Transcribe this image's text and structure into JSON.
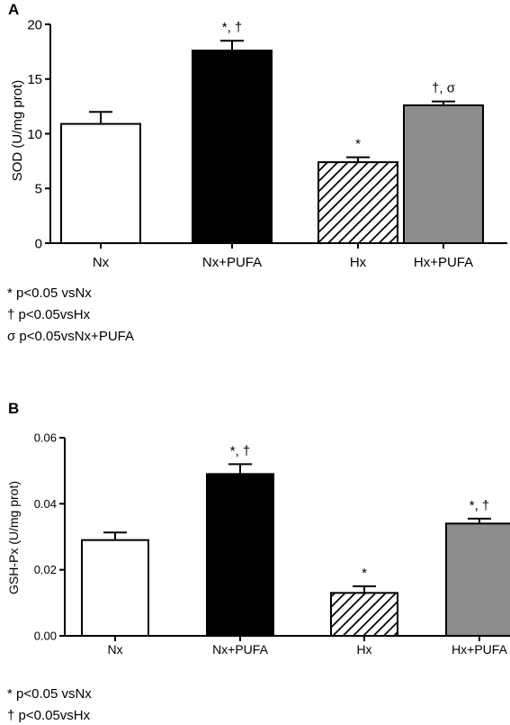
{
  "chart_data": [
    {
      "type": "bar",
      "panel": "A",
      "ylabel": "SOD (U/mg prot)",
      "categories": [
        "Nx",
        "Nx+PUFA",
        "Hx",
        "Hx+PUFA"
      ],
      "values": [
        10.9,
        17.6,
        7.4,
        12.6
      ],
      "errors": [
        1.1,
        0.9,
        0.45,
        0.35
      ],
      "annotations": [
        "",
        "*, †",
        "*",
        "†, σ"
      ],
      "bar_styles": [
        "white",
        "black",
        "hatched",
        "gray"
      ],
      "ylim": [
        0,
        20
      ],
      "yticks": [
        "0",
        "5",
        "10",
        "15",
        "20"
      ],
      "footnotes": [
        "* p<0.05 vsNx",
        "† p<0.05vsHx",
        "σ p<0.05vsNx+PUFA"
      ]
    },
    {
      "type": "bar",
      "panel": "B",
      "ylabel": "GSH-Px (U/mg prot)",
      "categories": [
        "Nx",
        "Nx+PUFA",
        "Hx",
        "Hx+PUFA"
      ],
      "values": [
        0.029,
        0.049,
        0.013,
        0.034
      ],
      "errors": [
        0.0023,
        0.003,
        0.002,
        0.0015
      ],
      "annotations": [
        "",
        "*, †",
        "*",
        "*, †"
      ],
      "bar_styles": [
        "white",
        "black",
        "hatched",
        "gray"
      ],
      "ylim": [
        0,
        0.06
      ],
      "yticks": [
        "0.00",
        "0.02",
        "0.04",
        "0.06"
      ],
      "footnotes": [
        "* p<0.05 vsNx",
        "† p<0.05vsHx"
      ]
    }
  ],
  "colors": {
    "white": "#ffffff",
    "black": "#000000",
    "gray": "#8c8c8c",
    "hatch": "#000000"
  }
}
